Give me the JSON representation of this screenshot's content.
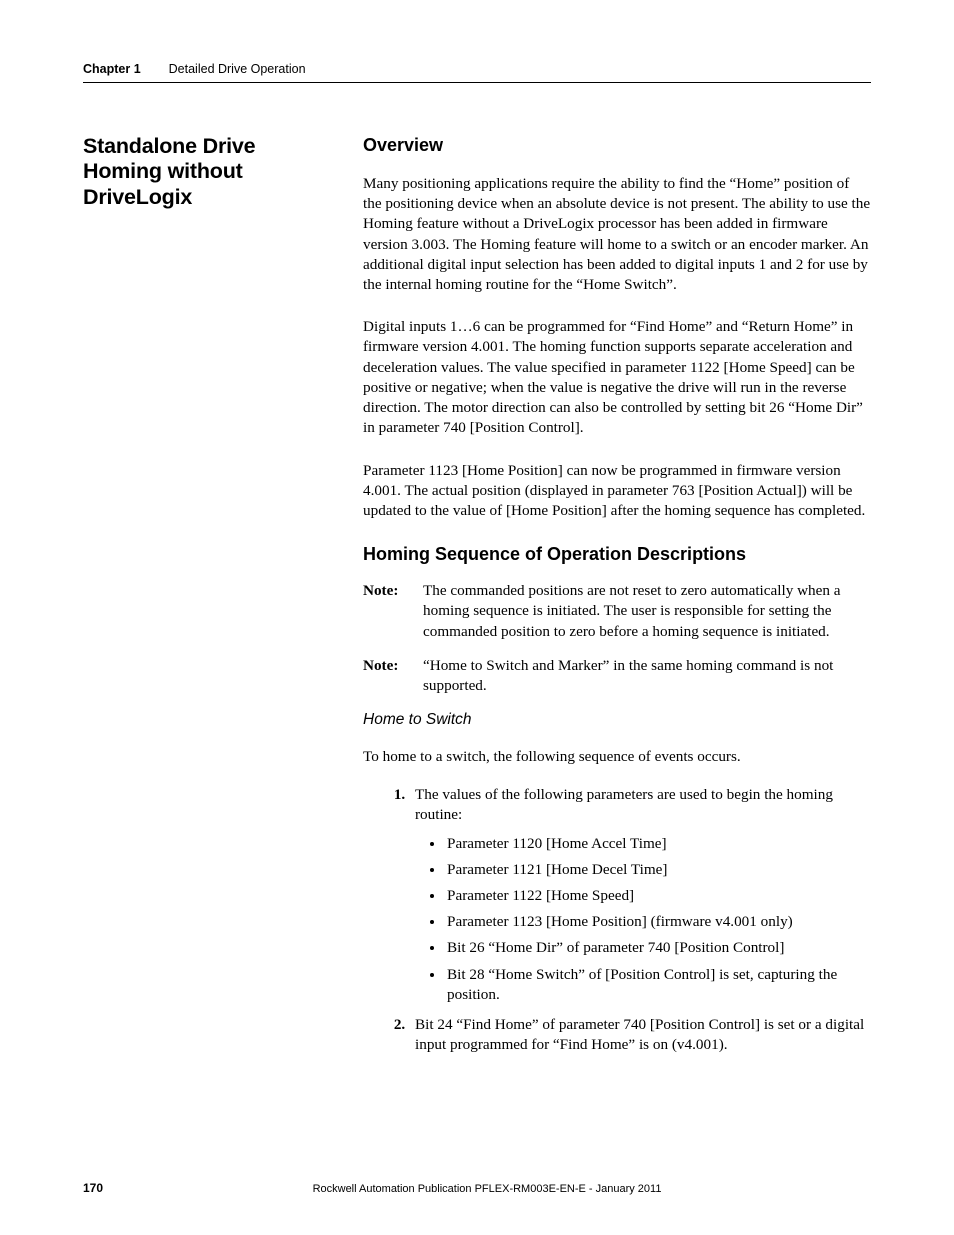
{
  "colors": {
    "text": "#000000",
    "background": "#ffffff",
    "rule": "#000000"
  },
  "typography": {
    "body_family": "Georgia, Times New Roman, serif",
    "heading_family": "Arial, Helvetica, sans-serif",
    "body_size_pt": 11.5,
    "side_heading_size_pt": 16,
    "section_heading_size_pt": 14,
    "footer_size_pt": 8.5
  },
  "header": {
    "chapter_label": "Chapter 1",
    "chapter_title": "Detailed Drive Operation"
  },
  "sidebar": {
    "heading": "Standalone Drive Homing without DriveLogix"
  },
  "main": {
    "overview_heading": "Overview",
    "overview_p1": "Many positioning applications require the ability to find the “Home” position of the positioning device when an absolute device is not present. The ability to use the Homing feature without a DriveLogix processor has been added in firmware version 3.003. The Homing feature will home to a switch or an encoder marker. An additional digital input selection has been added to digital inputs 1 and 2 for use by the internal homing routine for the “Home Switch”.",
    "overview_p2": "Digital inputs 1…6 can be programmed for “Find Home” and “Return Home” in firmware version 4.001. The homing function supports separate acceleration and deceleration values. The value specified in parameter 1122 [Home Speed] can be positive or negative; when the value is negative the drive will run in the reverse direction. The motor direction can also be controlled by setting bit 26 “Home Dir” in parameter 740 [Position Control].",
    "overview_p3": "Parameter 1123 [Home Position] can now be programmed in firmware version 4.001. The actual position (displayed in parameter 763 [Position Actual]) will be updated to the value of [Home Position] after the homing sequence has completed.",
    "seq_heading": "Homing Sequence of Operation Descriptions",
    "note_label": "Note:",
    "note1": "The commanded positions are not reset to zero automatically when a homing sequence is initiated. The user is responsible for setting the commanded position to zero before a homing sequence is initiated.",
    "note2": "“Home to Switch and Marker” in the same homing command is not supported.",
    "home_to_switch_heading": "Home to Switch",
    "home_to_switch_intro": "To home to a switch, the following sequence of events occurs.",
    "steps": [
      {
        "text": "The values of the following parameters are used to begin the homing routine:",
        "bullets": [
          "Parameter 1120 [Home Accel Time]",
          "Parameter 1121 [Home Decel Time]",
          "Parameter 1122 [Home Speed]",
          "Parameter 1123 [Home Position] (firmware v4.001 only)",
          "Bit 26 “Home Dir” of parameter 740 [Position Control]",
          "Bit 28 “Home Switch” of [Position Control] is set, capturing the position."
        ]
      },
      {
        "text": "Bit 24 “Find Home” of parameter 740 [Position Control] is set or a digital input programmed for “Find Home” is on (v4.001)."
      }
    ]
  },
  "footer": {
    "page_number": "170",
    "publication": "Rockwell Automation Publication PFLEX-RM003E-EN-E - January 2011"
  }
}
